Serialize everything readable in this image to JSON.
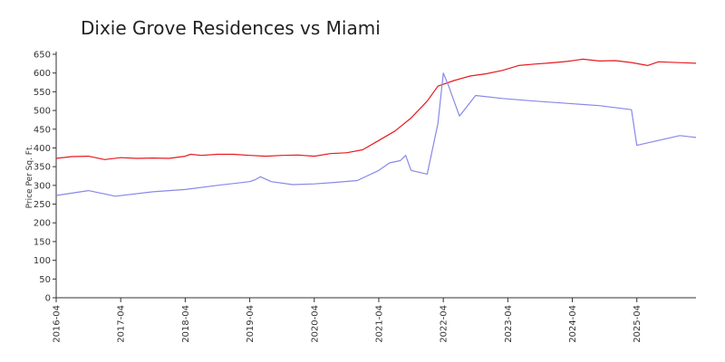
{
  "chart_data": {
    "type": "line",
    "title": "Dixie Grove Residences vs Miami",
    "xlabel": "",
    "ylabel": "Price Per Sq. Ft.",
    "ylim": [
      0,
      650
    ],
    "xlim": [
      "2016-04",
      "2026-03"
    ],
    "y_ticks": [
      0,
      50,
      100,
      150,
      200,
      250,
      300,
      350,
      400,
      450,
      500,
      550,
      600,
      650
    ],
    "x_ticks": [
      "2016-04",
      "2017-04",
      "2018-04",
      "2019-04",
      "2020-04",
      "2021-04",
      "2022-04",
      "2023-04",
      "2024-04",
      "2025-04"
    ],
    "grid": false,
    "legend": "none",
    "series": [
      {
        "color": "#e8191e",
        "points": [
          [
            "2016-04",
            372
          ],
          [
            "2016-07",
            377
          ],
          [
            "2016-10",
            378
          ],
          [
            "2017-01",
            369
          ],
          [
            "2017-04",
            374
          ],
          [
            "2017-07",
            372
          ],
          [
            "2017-10",
            373
          ],
          [
            "2018-01",
            372
          ],
          [
            "2018-04",
            378
          ],
          [
            "2018-05",
            383
          ],
          [
            "2018-07",
            380
          ],
          [
            "2018-10",
            383
          ],
          [
            "2019-01",
            383
          ],
          [
            "2019-04",
            380
          ],
          [
            "2019-07",
            378
          ],
          [
            "2019-10",
            380
          ],
          [
            "2020-01",
            381
          ],
          [
            "2020-04",
            378
          ],
          [
            "2020-07",
            385
          ],
          [
            "2020-10",
            387
          ],
          [
            "2021-01",
            395
          ],
          [
            "2021-04",
            420
          ],
          [
            "2021-07",
            445
          ],
          [
            "2021-10",
            480
          ],
          [
            "2022-01",
            525
          ],
          [
            "2022-03",
            565
          ],
          [
            "2022-06",
            580
          ],
          [
            "2022-09",
            592
          ],
          [
            "2022-12",
            598
          ],
          [
            "2023-03",
            607
          ],
          [
            "2023-06",
            620
          ],
          [
            "2023-09",
            624
          ],
          [
            "2023-12",
            627
          ],
          [
            "2024-03",
            631
          ],
          [
            "2024-06",
            637
          ],
          [
            "2024-09",
            632
          ],
          [
            "2024-12",
            633
          ],
          [
            "2025-03",
            628
          ],
          [
            "2025-06",
            620
          ],
          [
            "2025-08",
            630
          ],
          [
            "2026-03",
            626
          ]
        ]
      },
      {
        "color": "#8888e8",
        "points": [
          [
            "2016-04",
            273
          ],
          [
            "2016-10",
            286
          ],
          [
            "2017-03",
            271
          ],
          [
            "2017-10",
            283
          ],
          [
            "2018-04",
            289
          ],
          [
            "2018-10",
            300
          ],
          [
            "2019-04",
            310
          ],
          [
            "2019-05",
            315
          ],
          [
            "2019-06",
            323
          ],
          [
            "2019-08",
            310
          ],
          [
            "2019-12",
            302
          ],
          [
            "2020-04",
            304
          ],
          [
            "2020-08",
            308
          ],
          [
            "2020-12",
            313
          ],
          [
            "2021-04",
            340
          ],
          [
            "2021-06",
            360
          ],
          [
            "2021-08",
            366
          ],
          [
            "2021-09",
            380
          ],
          [
            "2021-10",
            340
          ],
          [
            "2022-01",
            330
          ],
          [
            "2022-03",
            465
          ],
          [
            "2022-04",
            600
          ],
          [
            "2022-05",
            565
          ],
          [
            "2022-07",
            485
          ],
          [
            "2022-10",
            540
          ],
          [
            "2023-03",
            532
          ],
          [
            "2023-09",
            525
          ],
          [
            "2024-03",
            519
          ],
          [
            "2024-09",
            513
          ],
          [
            "2025-03",
            502
          ],
          [
            "2025-04",
            407
          ],
          [
            "2025-08",
            420
          ],
          [
            "2025-12",
            433
          ],
          [
            "2026-03",
            428
          ]
        ]
      }
    ]
  }
}
